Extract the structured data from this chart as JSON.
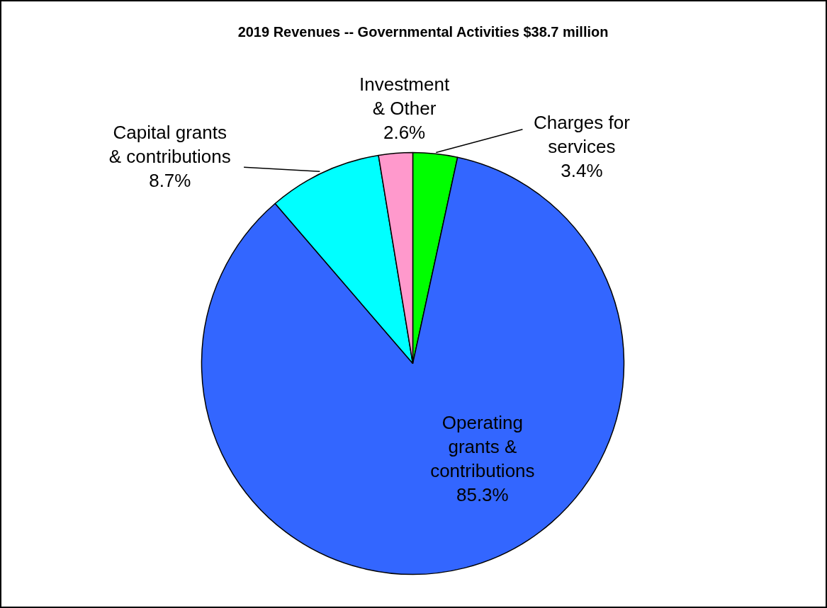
{
  "chart_data": {
    "type": "pie",
    "title": "2019 Revenues -- Governmental Activities $38.7 million",
    "categories": [
      "Charges for services",
      "Operating grants & contributions",
      "Capital grants & contributions",
      "Investment & Other"
    ],
    "values": [
      3.4,
      85.3,
      8.7,
      2.6
    ],
    "colors": [
      "#00ff00",
      "#3366ff",
      "#00ffff",
      "#ff99cc"
    ],
    "value_labels": [
      "3.4%",
      "85.3%",
      "8.7%",
      "2.6%"
    ]
  }
}
